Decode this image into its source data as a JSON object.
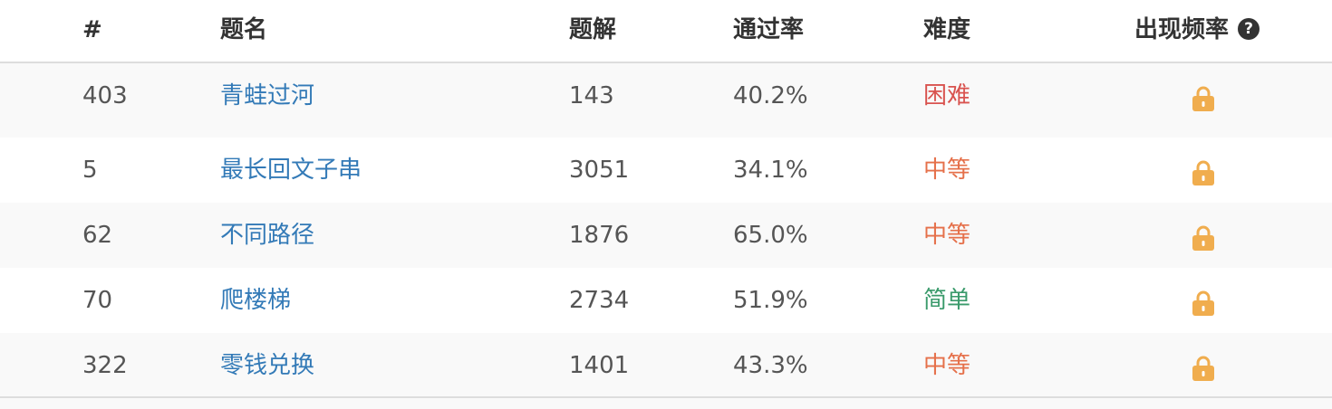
{
  "colors": {
    "link": "#337ab7",
    "hard": "#d9534f",
    "medium": "#e5704a",
    "easy": "#3a9a6b",
    "lock": "#f0ad4e",
    "stripe": "#f9f9f9"
  },
  "header": {
    "num": "#",
    "title": "题名",
    "solutions": "题解",
    "acceptance": "通过率",
    "difficulty": "难度",
    "frequency": "出现频率",
    "help_icon": "question-circle-icon"
  },
  "rows": [
    {
      "num": "403",
      "title": "青蛙过河",
      "solutions": "143",
      "acceptance": "40.2%",
      "difficulty": "困难",
      "difficulty_level": "hard",
      "frequency_icon": "lock-icon"
    },
    {
      "num": "5",
      "title": "最长回文子串",
      "solutions": "3051",
      "acceptance": "34.1%",
      "difficulty": "中等",
      "difficulty_level": "medium",
      "frequency_icon": "lock-icon"
    },
    {
      "num": "62",
      "title": "不同路径",
      "solutions": "1876",
      "acceptance": "65.0%",
      "difficulty": "中等",
      "difficulty_level": "medium",
      "frequency_icon": "lock-icon"
    },
    {
      "num": "70",
      "title": "爬楼梯",
      "solutions": "2734",
      "acceptance": "51.9%",
      "difficulty": "简单",
      "difficulty_level": "easy",
      "frequency_icon": "lock-icon"
    },
    {
      "num": "322",
      "title": "零钱兑换",
      "solutions": "1401",
      "acceptance": "43.3%",
      "difficulty": "中等",
      "difficulty_level": "medium",
      "frequency_icon": "lock-icon"
    }
  ]
}
